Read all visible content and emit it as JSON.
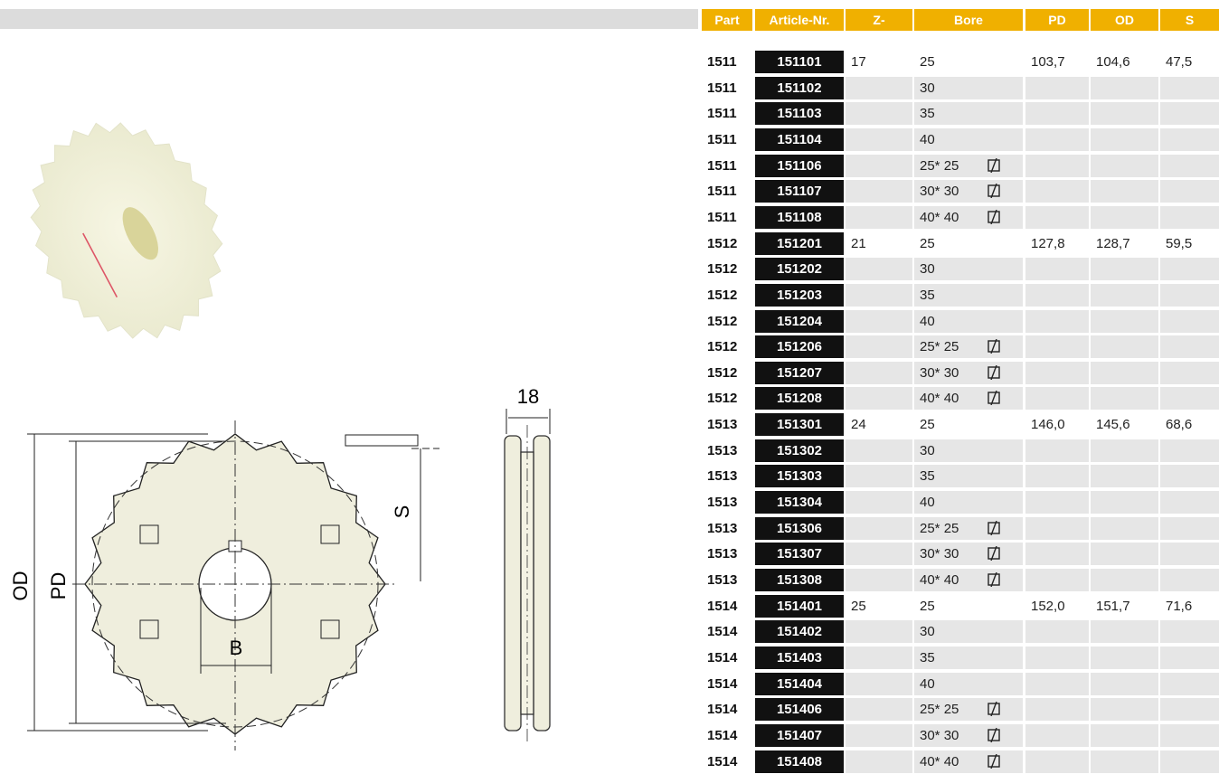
{
  "drawing": {
    "labels": {
      "od": "OD",
      "pd": "PD",
      "b": "B",
      "s": "S",
      "width": "18"
    }
  },
  "table": {
    "headers": [
      "Part",
      "Article-Nr.",
      "Z-",
      "Bore",
      "PD",
      "OD",
      "S"
    ],
    "rows": [
      {
        "part": "1511",
        "article": "151101",
        "z": "17",
        "bore": "25",
        "pd": "103,7",
        "od": "104,6",
        "s": "47,5"
      },
      {
        "part": "1511",
        "article": "151102",
        "bore": "30"
      },
      {
        "part": "1511",
        "article": "151103",
        "bore": "35"
      },
      {
        "part": "1511",
        "article": "151104",
        "bore": "40"
      },
      {
        "part": "1511",
        "article": "151106",
        "bore": "25* 25",
        "square": true
      },
      {
        "part": "1511",
        "article": "151107",
        "bore": "30* 30",
        "square": true
      },
      {
        "part": "1511",
        "article": "151108",
        "bore": "40* 40",
        "square": true
      },
      {
        "part": "1512",
        "article": "151201",
        "z": "21",
        "bore": "25",
        "pd": "127,8",
        "od": "128,7",
        "s": "59,5"
      },
      {
        "part": "1512",
        "article": "151202",
        "bore": "30"
      },
      {
        "part": "1512",
        "article": "151203",
        "bore": "35"
      },
      {
        "part": "1512",
        "article": "151204",
        "bore": "40"
      },
      {
        "part": "1512",
        "article": "151206",
        "bore": "25* 25",
        "square": true
      },
      {
        "part": "1512",
        "article": "151207",
        "bore": "30* 30",
        "square": true
      },
      {
        "part": "1512",
        "article": "151208",
        "bore": "40* 40",
        "square": true
      },
      {
        "part": "1513",
        "article": "151301",
        "z": "24",
        "bore": "25",
        "pd": "146,0",
        "od": "145,6",
        "s": "68,6"
      },
      {
        "part": "1513",
        "article": "151302",
        "bore": "30"
      },
      {
        "part": "1513",
        "article": "151303",
        "bore": "35"
      },
      {
        "part": "1513",
        "article": "151304",
        "bore": "40"
      },
      {
        "part": "1513",
        "article": "151306",
        "bore": "25* 25",
        "square": true
      },
      {
        "part": "1513",
        "article": "151307",
        "bore": "30* 30",
        "square": true
      },
      {
        "part": "1513",
        "article": "151308",
        "bore": "40* 40",
        "square": true
      },
      {
        "part": "1514",
        "article": "151401",
        "z": "25",
        "bore": "25",
        "pd": "152,0",
        "od": "151,7",
        "s": "71,6"
      },
      {
        "part": "1514",
        "article": "151402",
        "bore": "30"
      },
      {
        "part": "1514",
        "article": "151403",
        "bore": "35"
      },
      {
        "part": "1514",
        "article": "151404",
        "bore": "40"
      },
      {
        "part": "1514",
        "article": "151406",
        "bore": "25* 25",
        "square": true
      },
      {
        "part": "1514",
        "article": "151407",
        "bore": "30* 30",
        "square": true
      },
      {
        "part": "1514",
        "article": "151408",
        "bore": "40* 40",
        "square": true
      }
    ]
  }
}
